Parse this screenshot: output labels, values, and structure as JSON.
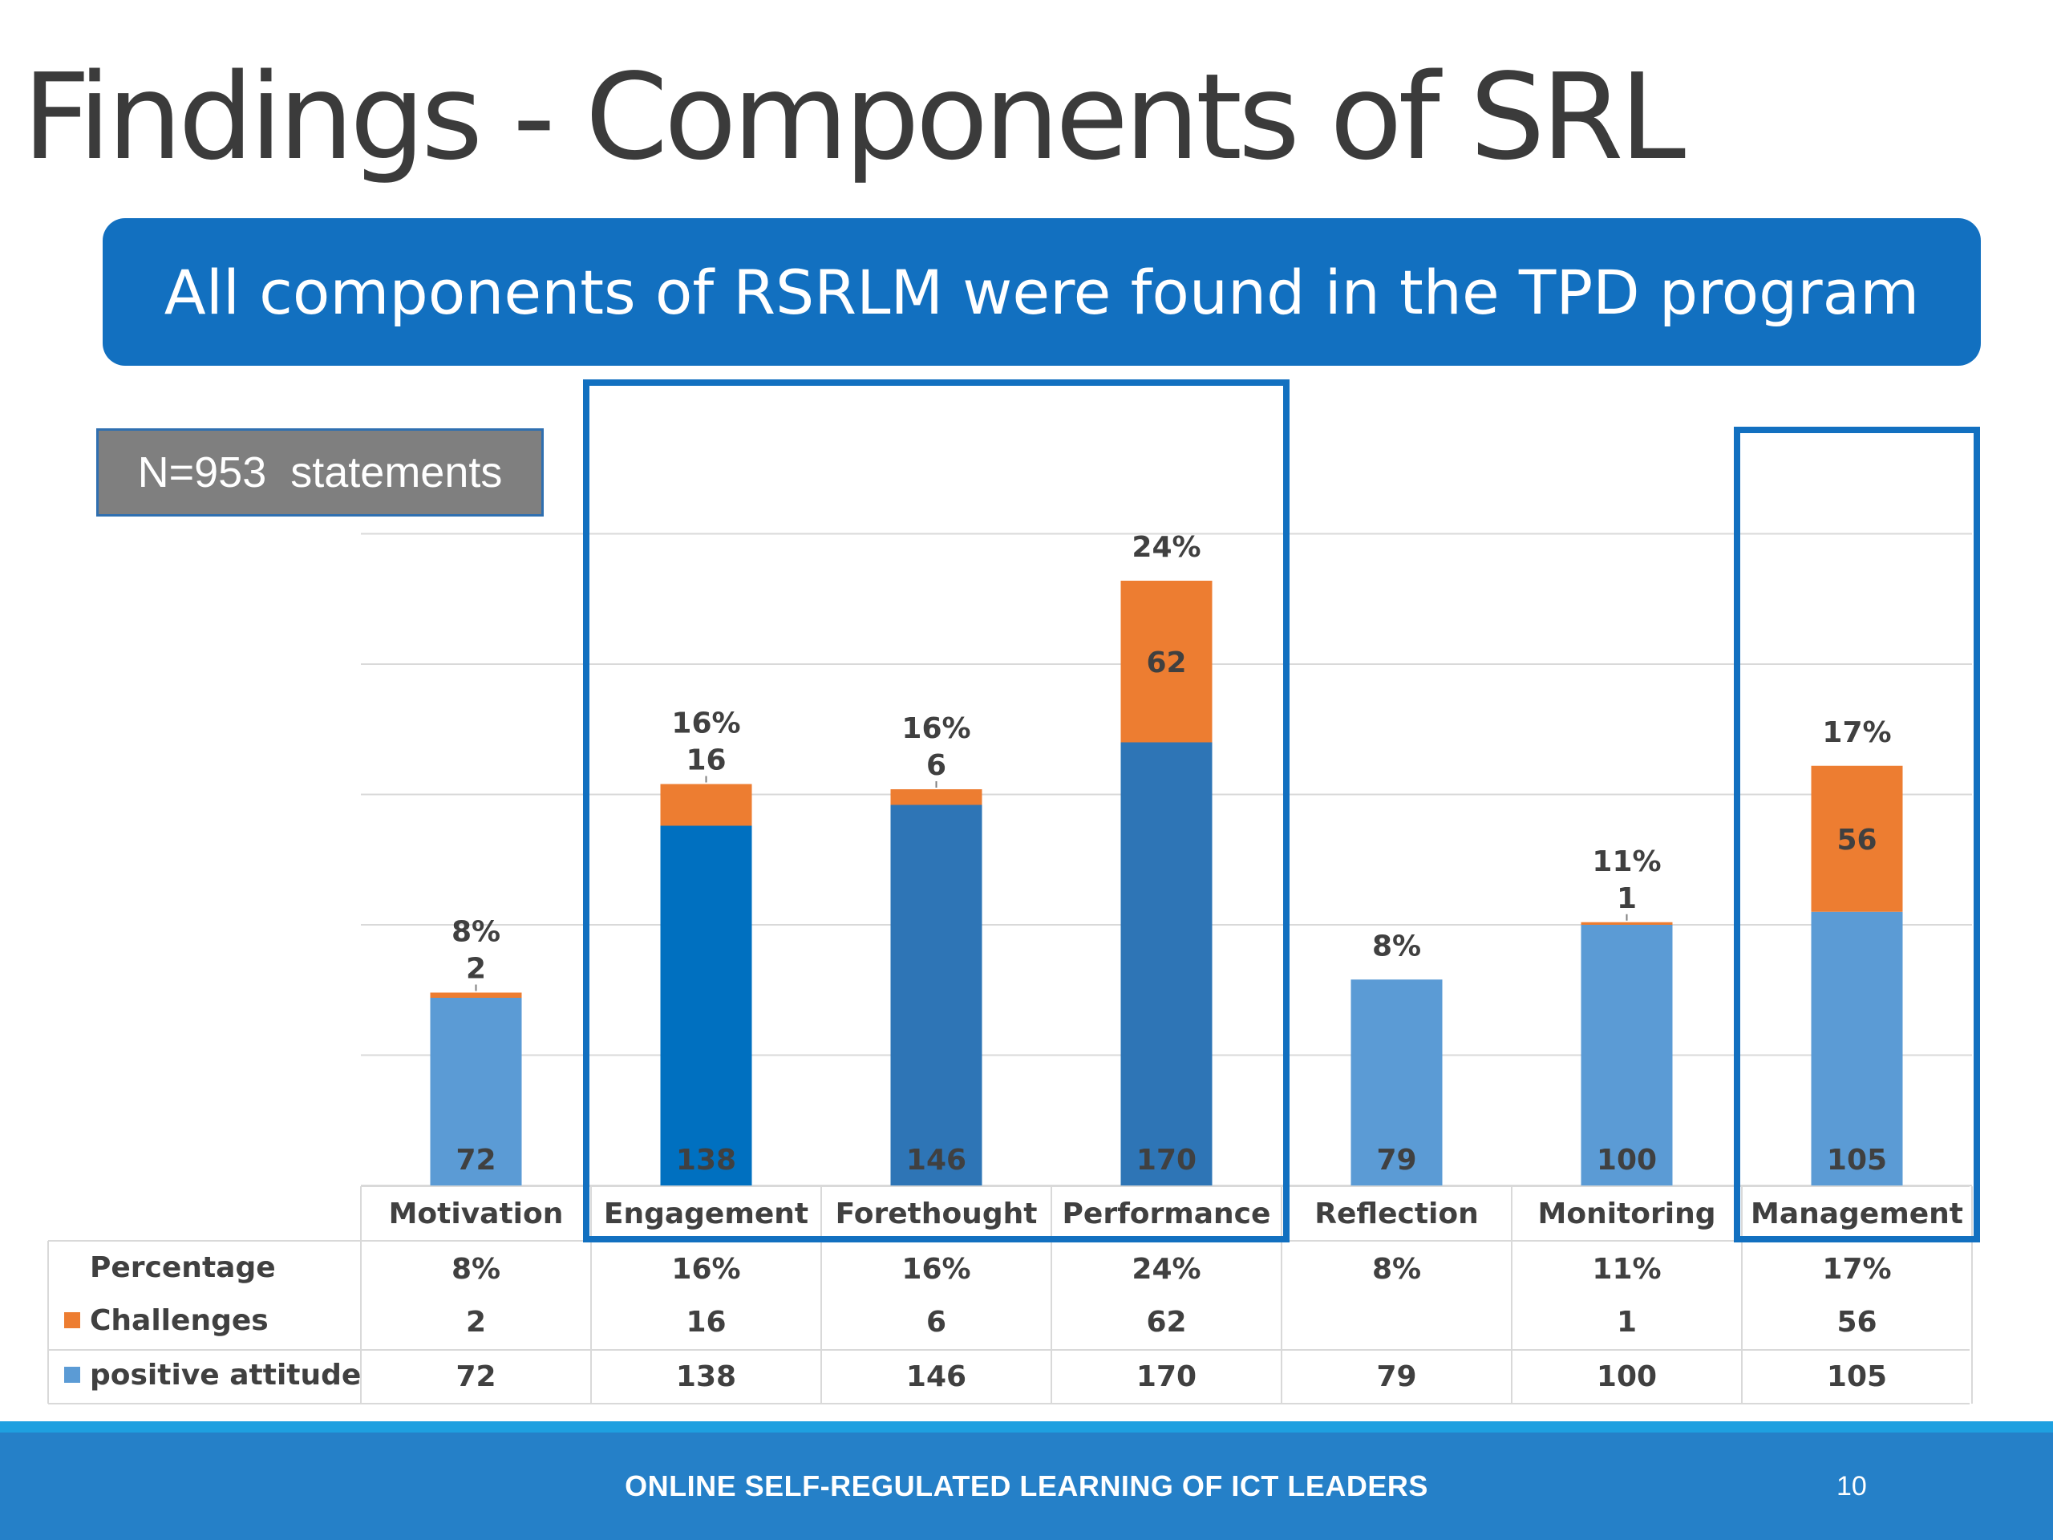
{
  "slide": {
    "title": "Findings - Components of SRL",
    "banner": "All components of RSRLM were found in the TPD program",
    "n_label": "N=953  statements",
    "footer": "ONLINE SELF-REGULATED LEARNING OF ICT LEADERS",
    "page_number": "10"
  },
  "chart_data": {
    "type": "bar",
    "stacked": true,
    "categories": [
      "Motivation",
      "Engagement",
      "Forethought",
      "Performance",
      "Reflection",
      "Monitoring",
      "Management"
    ],
    "series": [
      {
        "name": "positive attitude",
        "values": [
          72,
          138,
          146,
          170,
          79,
          100,
          105
        ],
        "color": "#5b9bd5"
      },
      {
        "name": "Challenges",
        "values": [
          2,
          16,
          6,
          62,
          null,
          1,
          56
        ],
        "color": "#ed7d31"
      }
    ],
    "percentages": [
      "8%",
      "16%",
      "16%",
      "24%",
      "8%",
      "11%",
      "17%"
    ],
    "percentage_row_label": "Percentage",
    "highlight_colors": [
      "#5b9bd5",
      "#0070c0",
      "#2e75b6",
      "#2e75b6",
      "#5b9bd5",
      "#5b9bd5",
      "#5b9bd5"
    ],
    "ylim": [
      0,
      250
    ],
    "grid": true,
    "data_table": true,
    "highlight_groups": [
      [
        "Engagement",
        "Forethought",
        "Performance"
      ],
      [
        "Management"
      ]
    ]
  }
}
